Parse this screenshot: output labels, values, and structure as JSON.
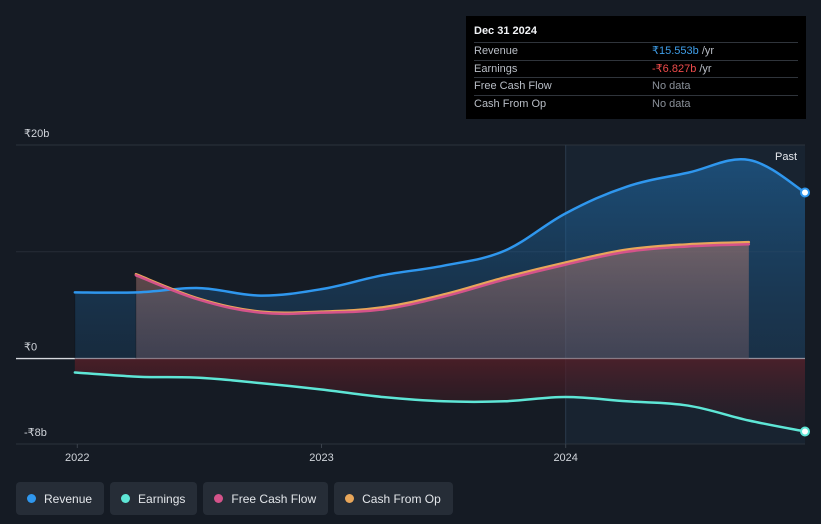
{
  "tooltip": {
    "date": "Dec 31 2024",
    "rows": [
      {
        "name": "Revenue",
        "value": "₹15.553b",
        "unit": " /yr"
      },
      {
        "name": "Earnings",
        "value": "-₹6.827b",
        "unit": " /yr"
      },
      {
        "name": "Free Cash Flow",
        "value": "No data"
      },
      {
        "name": "Cash From Op",
        "value": "No data"
      }
    ]
  },
  "legend": [
    {
      "label": "Revenue",
      "color": "#2f97ee"
    },
    {
      "label": "Earnings",
      "color": "#5ee6d6"
    },
    {
      "label": "Free Cash Flow",
      "color": "#d4538a"
    },
    {
      "label": "Cash From Op",
      "color": "#e8a65a"
    }
  ],
  "chart_data": {
    "type": "line",
    "title": "",
    "xlabel": "",
    "ylabel": "",
    "ylim": [
      -8,
      20
    ],
    "y_ticks": [
      {
        "value": 20,
        "label": "₹20b"
      },
      {
        "value": 0,
        "label": "₹0"
      },
      {
        "value": -8,
        "label": "-₹8b"
      }
    ],
    "x_ticks": [
      {
        "value": 2022.0,
        "label": "2022"
      },
      {
        "value": 2023.0,
        "label": "2023"
      },
      {
        "value": 2024.0,
        "label": "2024"
      }
    ],
    "xlim": [
      2021.88,
      2024.98
    ],
    "past_start": 2024.0,
    "past_label": "Past",
    "series": [
      {
        "name": "Revenue",
        "color": "#2f97ee",
        "points": [
          [
            2021.99,
            6.2
          ],
          [
            2022.25,
            6.2
          ],
          [
            2022.5,
            6.6
          ],
          [
            2022.75,
            5.9
          ],
          [
            2023.0,
            6.5
          ],
          [
            2023.25,
            7.8
          ],
          [
            2023.5,
            8.7
          ],
          [
            2023.75,
            10.1
          ],
          [
            2024.0,
            13.6
          ],
          [
            2024.25,
            16.1
          ],
          [
            2024.5,
            17.4
          ],
          [
            2024.75,
            18.6
          ],
          [
            2024.98,
            15.553
          ]
        ]
      },
      {
        "name": "Earnings",
        "color": "#5ee6d6",
        "points": [
          [
            2021.99,
            -1.3
          ],
          [
            2022.25,
            -1.7
          ],
          [
            2022.5,
            -1.8
          ],
          [
            2022.75,
            -2.3
          ],
          [
            2023.0,
            -2.9
          ],
          [
            2023.25,
            -3.6
          ],
          [
            2023.5,
            -4.0
          ],
          [
            2023.75,
            -4.0
          ],
          [
            2024.0,
            -3.6
          ],
          [
            2024.25,
            -4.0
          ],
          [
            2024.5,
            -4.4
          ],
          [
            2024.75,
            -5.8
          ],
          [
            2024.98,
            -6.827
          ]
        ]
      },
      {
        "name": "Free Cash Flow",
        "color": "#d4538a",
        "points": [
          [
            2022.24,
            7.8
          ],
          [
            2022.5,
            5.5
          ],
          [
            2022.75,
            4.3
          ],
          [
            2023.0,
            4.3
          ],
          [
            2023.25,
            4.6
          ],
          [
            2023.5,
            5.8
          ],
          [
            2023.75,
            7.4
          ],
          [
            2024.0,
            8.8
          ],
          [
            2024.25,
            10.0
          ],
          [
            2024.5,
            10.5
          ],
          [
            2024.75,
            10.7
          ]
        ]
      },
      {
        "name": "Cash From Op",
        "color": "#e8a65a",
        "points": [
          [
            2022.24,
            7.9
          ],
          [
            2022.5,
            5.6
          ],
          [
            2022.75,
            4.4
          ],
          [
            2023.0,
            4.4
          ],
          [
            2023.25,
            4.8
          ],
          [
            2023.5,
            6.0
          ],
          [
            2023.75,
            7.6
          ],
          [
            2024.0,
            9.0
          ],
          [
            2024.25,
            10.2
          ],
          [
            2024.5,
            10.7
          ],
          [
            2024.75,
            10.9
          ]
        ]
      }
    ]
  }
}
